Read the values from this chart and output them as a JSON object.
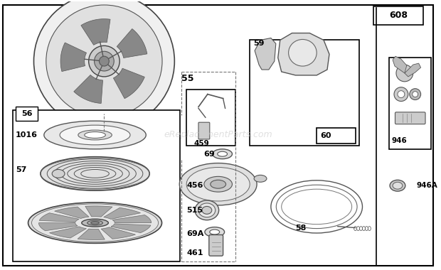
{
  "bg_color": "#ffffff",
  "watermark": "eReplacementParts.com",
  "watermark_color": "#cccccc",
  "watermark_alpha": 0.6
}
